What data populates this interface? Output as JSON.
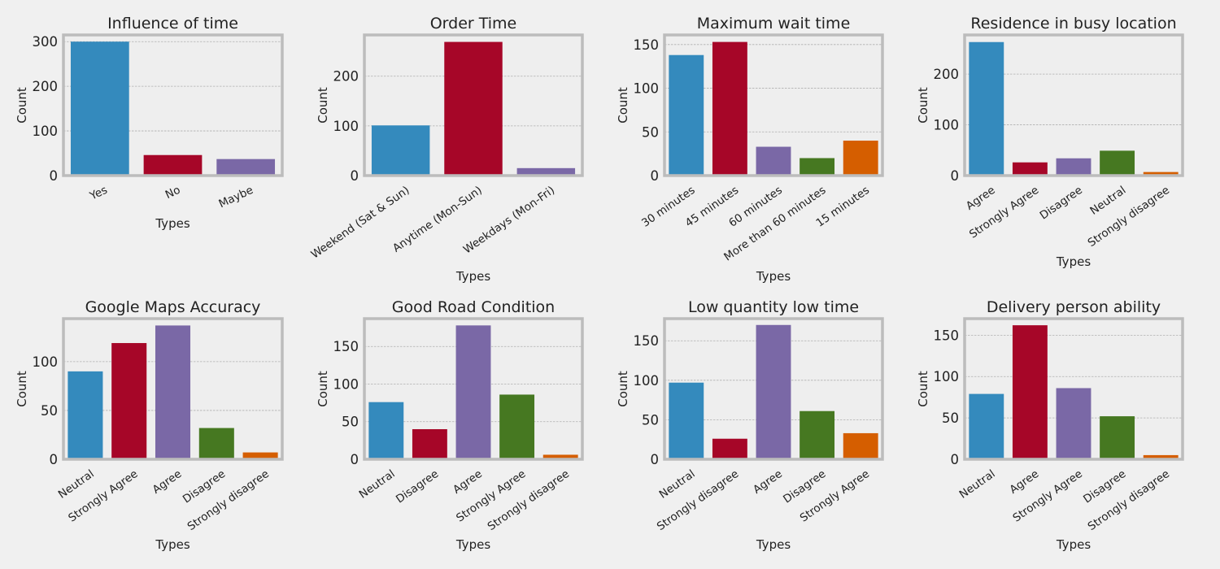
{
  "figure": {
    "background": "#f0f0f0",
    "axes_background": "#eeeeee",
    "spine_color": "#bcbcbc",
    "grid_color": "#b0b0b0",
    "palette": [
      "#348ABD",
      "#A60628",
      "#7A68A6",
      "#467821",
      "#D55E00"
    ]
  },
  "chart_data": [
    {
      "type": "bar",
      "title": "Influence of time",
      "xlabel": "Types",
      "ylabel": "Count",
      "categories": [
        "Yes",
        "No",
        "Maybe"
      ],
      "values": [
        300,
        46,
        37
      ],
      "ylim": [
        0,
        315
      ],
      "yticks": [
        0,
        100,
        200,
        300
      ],
      "grid": true
    },
    {
      "type": "bar",
      "title": "Order Time",
      "xlabel": "Types",
      "ylabel": "Count",
      "categories": [
        "Weekend (Sat & Sun)",
        "Anytime (Mon-Sun)",
        "Weekdays (Mon-Fri)"
      ],
      "values": [
        101,
        269,
        15
      ],
      "ylim": [
        0,
        283
      ],
      "yticks": [
        0,
        100,
        200
      ],
      "grid": true
    },
    {
      "type": "bar",
      "title": "Maximum wait time",
      "xlabel": "Types",
      "ylabel": "Count",
      "categories": [
        "30 minutes",
        "45 minutes",
        "60 minutes",
        "More than 60 minutes",
        "15 minutes"
      ],
      "values": [
        138,
        153,
        33,
        20,
        40
      ],
      "ylim": [
        0,
        161
      ],
      "yticks": [
        0,
        50,
        100,
        150
      ],
      "grid": true
    },
    {
      "type": "bar",
      "title": "Residence in busy location",
      "xlabel": "Types",
      "ylabel": "Count",
      "categories": [
        "Agree",
        "Strongly Agree",
        "Disagree",
        "Neutral",
        "Strongly disagree"
      ],
      "values": [
        263,
        26,
        34,
        49,
        7
      ],
      "ylim": [
        0,
        277
      ],
      "yticks": [
        0,
        100,
        200
      ],
      "grid": true
    },
    {
      "type": "bar",
      "title": "Google Maps Accuracy",
      "xlabel": "Types",
      "ylabel": "Count",
      "categories": [
        "Neutral",
        "Strongly Agree",
        "Agree",
        "Disagree",
        "Strongly disagree"
      ],
      "values": [
        90,
        119,
        137,
        32,
        7
      ],
      "ylim": [
        0,
        144
      ],
      "yticks": [
        0,
        50,
        100
      ],
      "grid": true
    },
    {
      "type": "bar",
      "title": "Good Road Condition",
      "xlabel": "Types",
      "ylabel": "Count",
      "categories": [
        "Neutral",
        "Disagree",
        "Agree",
        "Strongly Agree",
        "Strongly disagree"
      ],
      "values": [
        76,
        40,
        178,
        86,
        6
      ],
      "ylim": [
        0,
        187
      ],
      "yticks": [
        0,
        50,
        100,
        150
      ],
      "grid": true
    },
    {
      "type": "bar",
      "title": "Low quantity low time",
      "xlabel": "Types",
      "ylabel": "Count",
      "categories": [
        "Neutral",
        "Strongly disagree",
        "Agree",
        "Disagree",
        "Strongly Agree"
      ],
      "values": [
        97,
        26,
        170,
        61,
        33
      ],
      "ylim": [
        0,
        178
      ],
      "yticks": [
        0,
        50,
        100,
        150
      ],
      "grid": true
    },
    {
      "type": "bar",
      "title": "Delivery person ability",
      "xlabel": "Types",
      "ylabel": "Count",
      "categories": [
        "Neutral",
        "Agree",
        "Strongly Agree",
        "Disagree",
        "Strongly disagree"
      ],
      "values": [
        79,
        162,
        86,
        52,
        5
      ],
      "ylim": [
        0,
        170
      ],
      "yticks": [
        0,
        50,
        100,
        150
      ],
      "grid": true
    }
  ]
}
